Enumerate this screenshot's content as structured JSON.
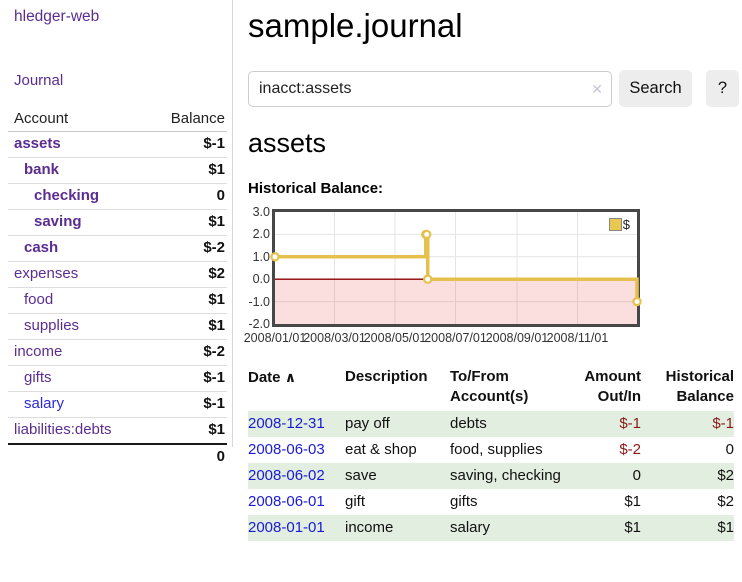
{
  "app": {
    "brand": "hledger-web"
  },
  "sidebar": {
    "journal_link": "Journal",
    "accounts": {
      "header_account": "Account",
      "header_balance": "Balance",
      "rows": [
        {
          "name": "assets",
          "indent": 1,
          "balance": "$-1",
          "bold": true,
          "neg": "strong",
          "unvisited": false
        },
        {
          "name": "bank",
          "indent": 2,
          "balance": "$1",
          "bold": true,
          "neg": "none",
          "unvisited": false
        },
        {
          "name": "checking",
          "indent": 3,
          "balance": "0",
          "bold": true,
          "neg": "none",
          "unvisited": false
        },
        {
          "name": "saving",
          "indent": 3,
          "balance": "$1",
          "bold": true,
          "neg": "none",
          "unvisited": false
        },
        {
          "name": "cash",
          "indent": 2,
          "balance": "$-2",
          "bold": true,
          "neg": "strong",
          "unvisited": false
        },
        {
          "name": "expenses",
          "indent": 1,
          "balance": "$2",
          "bold": false,
          "neg": "none",
          "unvisited": false
        },
        {
          "name": "food",
          "indent": 2,
          "balance": "$1",
          "bold": false,
          "neg": "none",
          "unvisited": false
        },
        {
          "name": "supplies",
          "indent": 2,
          "balance": "$1",
          "bold": false,
          "neg": "none",
          "unvisited": false
        },
        {
          "name": "income",
          "indent": 1,
          "balance": "$-2",
          "bold": false,
          "neg": "soft",
          "unvisited": false
        },
        {
          "name": "gifts",
          "indent": 2,
          "balance": "$-1",
          "bold": false,
          "neg": "soft",
          "unvisited": false
        },
        {
          "name": "salary",
          "indent": 2,
          "balance": "$-1",
          "bold": false,
          "neg": "soft",
          "unvisited": true
        },
        {
          "name": "liabilities:debts",
          "indent": 1,
          "balance": "$1",
          "bold": false,
          "neg": "none",
          "unvisited": false
        }
      ],
      "total": "0"
    }
  },
  "main": {
    "title": "sample.journal",
    "search": {
      "value": "inacct:assets",
      "clear_icon": "✕",
      "button": "Search",
      "help": "?"
    },
    "heading": "assets",
    "chart_title": "Historical Balance:"
  },
  "chart_data": {
    "type": "line",
    "title": "Historical Balance:",
    "step": true,
    "xlim": [
      "2008-01-01",
      "2008-12-31"
    ],
    "ylim": [
      -2.0,
      3.0
    ],
    "y_ticks": [
      "3.0",
      "2.0",
      "1.0",
      "0.0",
      "-1.0",
      "-2.0"
    ],
    "y_tick_values": [
      3,
      2,
      1,
      0,
      -1,
      -2
    ],
    "x_ticks": [
      {
        "label": "2008/01/01",
        "date": "2008-01-01"
      },
      {
        "label": "2008/03/01",
        "date": "2008-03-01"
      },
      {
        "label": "2008/05/01",
        "date": "2008-05-01"
      },
      {
        "label": "2008/07/01",
        "date": "2008-07-01"
      },
      {
        "label": "2008/09/01",
        "date": "2008-09-01"
      },
      {
        "label": "2008/11/01",
        "date": "2008-11-01"
      }
    ],
    "series": [
      {
        "name": "$",
        "points": [
          {
            "date": "2008-01-01",
            "value": 1
          },
          {
            "date": "2008-06-01",
            "value": 2
          },
          {
            "date": "2008-06-02",
            "value": 2
          },
          {
            "date": "2008-06-03",
            "value": 0
          },
          {
            "date": "2008-12-31",
            "value": -1
          }
        ]
      }
    ],
    "legend": {
      "label": "$",
      "position": "top-right"
    },
    "negative_region_shaded": true,
    "colors": {
      "line": "#e6c04c",
      "marker_fill": "#ffffff",
      "negative_fill": "rgba(235,80,80,0.18)",
      "zero_line": "#8b0000",
      "grid": "#e4e4e4",
      "legend_swatch": "#e8c84e"
    }
  },
  "register": {
    "headers": {
      "date": "Date",
      "sort_icon": "∧",
      "description": "Description",
      "accounts": "To/From Account(s)",
      "amount": "Amount Out/In",
      "balance": "Historical Balance"
    },
    "rows": [
      {
        "date": "2008-12-31",
        "description": "pay off",
        "accounts": "debts",
        "amount": "$-1",
        "balance": "$-1",
        "amount_neg": true,
        "balance_neg": true
      },
      {
        "date": "2008-06-03",
        "description": "eat & shop",
        "accounts": "food, supplies",
        "amount": "$-2",
        "balance": "0",
        "amount_neg": true,
        "balance_neg": false
      },
      {
        "date": "2008-06-02",
        "description": "save",
        "accounts": "saving, checking",
        "amount": "0",
        "balance": "$2",
        "amount_neg": false,
        "balance_neg": false
      },
      {
        "date": "2008-06-01",
        "description": "gift",
        "accounts": "gifts",
        "amount": "$1",
        "balance": "$2",
        "amount_neg": false,
        "balance_neg": false
      },
      {
        "date": "2008-01-01",
        "description": "income",
        "accounts": "salary",
        "amount": "$1",
        "balance": "$1",
        "amount_neg": false,
        "balance_neg": false
      }
    ]
  }
}
